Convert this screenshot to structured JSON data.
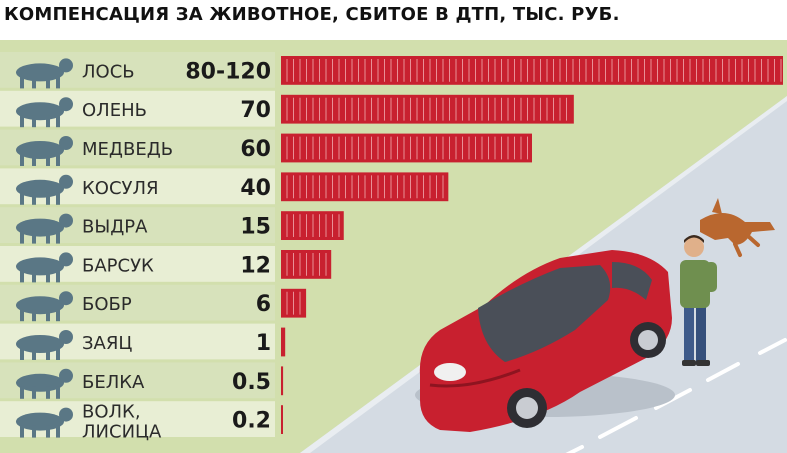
{
  "chart_data": {
    "type": "bar",
    "title": "КОМПЕНСАЦИЯ ЗА ЖИВОТНОЕ, СБИТОЕ В ДТП, ТЫС. РУБ.",
    "orientation": "horizontal",
    "unit": "тыс. руб.",
    "bar_color": "#c8202f",
    "categories": [
      "ЛОСЬ",
      "ОЛЕНЬ",
      "МЕДВЕДЬ",
      "КОСУЛЯ",
      "ВЫДРА",
      "БАРСУК",
      "БОБР",
      "ЗАЯЦ",
      "БЕЛКА",
      "ВОЛК, ЛИСИЦА"
    ],
    "label_lines": [
      [
        "ЛОСЬ"
      ],
      [
        "ОЛЕНЬ"
      ],
      [
        "МЕДВЕДЬ"
      ],
      [
        "КОСУЛЯ"
      ],
      [
        "ВЫДРА"
      ],
      [
        "БАРСУК"
      ],
      [
        "БОБР"
      ],
      [
        "ЗАЯЦ"
      ],
      [
        "БЕЛКА"
      ],
      [
        "ВОЛК,",
        "ЛИСИЦА"
      ]
    ],
    "value_labels": [
      "80-120",
      "70",
      "60",
      "40",
      "15",
      "12",
      "6",
      "1",
      "0.5",
      "0.2"
    ],
    "values": [
      120,
      70,
      60,
      40,
      15,
      12,
      6,
      1,
      0.5,
      0.2
    ],
    "range_min": [
      80,
      null,
      null,
      null,
      null,
      null,
      null,
      null,
      null,
      null
    ],
    "icons": [
      "moose-icon",
      "deer-icon",
      "bear-icon",
      "roe-deer-icon",
      "otter-icon",
      "badger-icon",
      "beaver-icon",
      "hare-icon",
      "squirrel-icon",
      "wolf-fox-icon"
    ]
  },
  "colors": {
    "row_band": "#d7e2bb",
    "row_band_alt": "#e8eed4",
    "grass": "#cddba6",
    "road": "#d7dde4",
    "icon": "#5a7785",
    "car": "#c8202f"
  }
}
